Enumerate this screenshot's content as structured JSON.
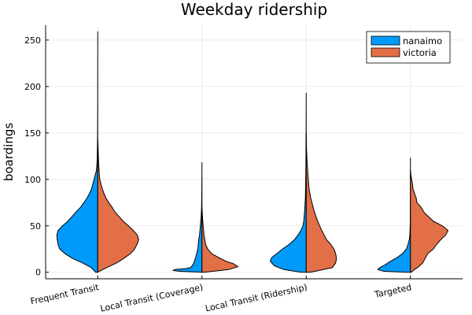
{
  "chart_data": {
    "type": "split-violin",
    "title": "Weekday ridership",
    "xlabel": "",
    "ylabel": "boardings",
    "ylim": [
      -7,
      266
    ],
    "yticks": [
      0,
      50,
      100,
      150,
      200,
      250
    ],
    "categories": [
      "Frequent Transit",
      "Local Transit (Coverage)",
      "Local Transit (Ridership)",
      "Targeted"
    ],
    "legend": {
      "position": "top-right"
    },
    "series": [
      {
        "name": "nanaimo",
        "side": "left",
        "color": "#009AFA",
        "groups": [
          {
            "category": "Frequent Transit",
            "min": 0,
            "max": 259,
            "profile": [
              [
                0,
                0.05
              ],
              [
                5,
                0.16
              ],
              [
                10,
                0.37
              ],
              [
                15,
                0.62
              ],
              [
                20,
                0.8
              ],
              [
                25,
                0.93
              ],
              [
                30,
                0.97
              ],
              [
                35,
                0.99
              ],
              [
                40,
                1.0
              ],
              [
                45,
                0.97
              ],
              [
                50,
                0.86
              ],
              [
                55,
                0.73
              ],
              [
                60,
                0.63
              ],
              [
                65,
                0.53
              ],
              [
                70,
                0.42
              ],
              [
                75,
                0.34
              ],
              [
                80,
                0.26
              ],
              [
                85,
                0.2
              ],
              [
                90,
                0.15
              ],
              [
                95,
                0.12
              ],
              [
                100,
                0.09
              ],
              [
                105,
                0.06
              ],
              [
                110,
                0.03
              ],
              [
                120,
                0.015
              ],
              [
                135,
                0.008
              ],
              [
                150,
                0.004
              ],
              [
                175,
                0.002
              ],
              [
                200,
                0.001
              ],
              [
                225,
                0.0005
              ],
              [
                259,
                0
              ]
            ]
          },
          {
            "category": "Local Transit (Coverage)",
            "min": 0,
            "max": 118,
            "profile": [
              [
                0,
                0.0
              ],
              [
                1,
                0.55
              ],
              [
                2,
                0.71
              ],
              [
                3,
                0.65
              ],
              [
                4,
                0.4
              ],
              [
                5,
                0.28
              ],
              [
                7,
                0.24
              ],
              [
                10,
                0.2
              ],
              [
                14,
                0.17
              ],
              [
                18,
                0.14
              ],
              [
                22,
                0.12
              ],
              [
                26,
                0.1
              ],
              [
                30,
                0.09
              ],
              [
                35,
                0.08
              ],
              [
                40,
                0.06
              ],
              [
                45,
                0.05
              ],
              [
                50,
                0.04
              ],
              [
                55,
                0.03
              ],
              [
                60,
                0.02
              ],
              [
                70,
                0.01
              ],
              [
                85,
                0.005
              ],
              [
                100,
                0.002
              ],
              [
                118,
                0
              ]
            ]
          },
          {
            "category": "Local Transit (Ridership)",
            "min": 0,
            "max": 193,
            "profile": [
              [
                0,
                0.12
              ],
              [
                3,
                0.55
              ],
              [
                7,
                0.78
              ],
              [
                12,
                0.88
              ],
              [
                16,
                0.84
              ],
              [
                20,
                0.72
              ],
              [
                25,
                0.58
              ],
              [
                30,
                0.42
              ],
              [
                35,
                0.29
              ],
              [
                40,
                0.2
              ],
              [
                45,
                0.13
              ],
              [
                50,
                0.08
              ],
              [
                55,
                0.06
              ],
              [
                65,
                0.04
              ],
              [
                80,
                0.02
              ],
              [
                100,
                0.012
              ],
              [
                125,
                0.006
              ],
              [
                150,
                0.003
              ],
              [
                175,
                0.001
              ],
              [
                193,
                0
              ]
            ]
          },
          {
            "category": "Targeted",
            "min": 0,
            "max": 123,
            "profile": [
              [
                0,
                0.08
              ],
              [
                1,
                0.65
              ],
              [
                3,
                0.8
              ],
              [
                5,
                0.75
              ],
              [
                8,
                0.62
              ],
              [
                12,
                0.48
              ],
              [
                16,
                0.32
              ],
              [
                20,
                0.2
              ],
              [
                25,
                0.1
              ],
              [
                30,
                0.06
              ],
              [
                35,
                0.03
              ],
              [
                40,
                0.015
              ],
              [
                50,
                0.006
              ],
              [
                60,
                0.003
              ],
              [
                80,
                0.001
              ],
              [
                100,
                0.0005
              ],
              [
                123,
                0
              ]
            ]
          }
        ]
      },
      {
        "name": "victoria",
        "side": "right",
        "color": "#E26F46",
        "groups": [
          {
            "category": "Frequent Transit",
            "min": 0,
            "max": 143,
            "profile": [
              [
                0,
                0.0
              ],
              [
                2,
                0.08
              ],
              [
                5,
                0.22
              ],
              [
                10,
                0.46
              ],
              [
                15,
                0.64
              ],
              [
                20,
                0.8
              ],
              [
                25,
                0.9
              ],
              [
                30,
                0.96
              ],
              [
                35,
                1.0
              ],
              [
                40,
                0.97
              ],
              [
                45,
                0.87
              ],
              [
                50,
                0.75
              ],
              [
                55,
                0.62
              ],
              [
                60,
                0.52
              ],
              [
                65,
                0.42
              ],
              [
                70,
                0.35
              ],
              [
                75,
                0.27
              ],
              [
                80,
                0.2
              ],
              [
                85,
                0.15
              ],
              [
                90,
                0.11
              ],
              [
                95,
                0.08
              ],
              [
                100,
                0.05
              ],
              [
                105,
                0.04
              ],
              [
                115,
                0.025
              ],
              [
                125,
                0.015
              ],
              [
                135,
                0.008
              ],
              [
                143,
                0
              ]
            ]
          },
          {
            "category": "Local Transit (Coverage)",
            "min": 0,
            "max": 70,
            "profile": [
              [
                0,
                0.05
              ],
              [
                3,
                0.65
              ],
              [
                6,
                0.88
              ],
              [
                9,
                0.78
              ],
              [
                12,
                0.58
              ],
              [
                16,
                0.4
              ],
              [
                20,
                0.24
              ],
              [
                25,
                0.14
              ],
              [
                30,
                0.09
              ],
              [
                35,
                0.07
              ],
              [
                40,
                0.05
              ],
              [
                45,
                0.04
              ],
              [
                50,
                0.03
              ],
              [
                55,
                0.02
              ],
              [
                60,
                0.012
              ],
              [
                70,
                0
              ]
            ]
          },
          {
            "category": "Local Transit (Ridership)",
            "min": 0,
            "max": 150,
            "profile": [
              [
                0,
                0.1
              ],
              [
                5,
                0.64
              ],
              [
                10,
                0.72
              ],
              [
                15,
                0.74
              ],
              [
                20,
                0.72
              ],
              [
                25,
                0.68
              ],
              [
                30,
                0.6
              ],
              [
                35,
                0.5
              ],
              [
                40,
                0.44
              ],
              [
                45,
                0.38
              ],
              [
                50,
                0.33
              ],
              [
                55,
                0.28
              ],
              [
                60,
                0.24
              ],
              [
                65,
                0.2
              ],
              [
                70,
                0.17
              ],
              [
                75,
                0.14
              ],
              [
                80,
                0.11
              ],
              [
                85,
                0.09
              ],
              [
                90,
                0.07
              ],
              [
                100,
                0.05
              ],
              [
                110,
                0.035
              ],
              [
                120,
                0.02
              ],
              [
                130,
                0.01
              ],
              [
                150,
                0
              ]
            ]
          },
          {
            "category": "Targeted",
            "min": 0,
            "max": 110,
            "profile": [
              [
                0,
                0.02
              ],
              [
                3,
                0.1
              ],
              [
                6,
                0.2
              ],
              [
                10,
                0.3
              ],
              [
                15,
                0.36
              ],
              [
                20,
                0.42
              ],
              [
                25,
                0.56
              ],
              [
                30,
                0.64
              ],
              [
                35,
                0.74
              ],
              [
                40,
                0.86
              ],
              [
                45,
                0.92
              ],
              [
                50,
                0.78
              ],
              [
                55,
                0.56
              ],
              [
                60,
                0.44
              ],
              [
                64,
                0.34
              ],
              [
                67,
                0.3
              ],
              [
                70,
                0.26
              ],
              [
                75,
                0.16
              ],
              [
                80,
                0.14
              ],
              [
                85,
                0.1
              ],
              [
                90,
                0.06
              ],
              [
                95,
                0.05
              ],
              [
                100,
                0.03
              ],
              [
                105,
                0.01
              ],
              [
                110,
                0
              ]
            ]
          }
        ]
      }
    ]
  }
}
